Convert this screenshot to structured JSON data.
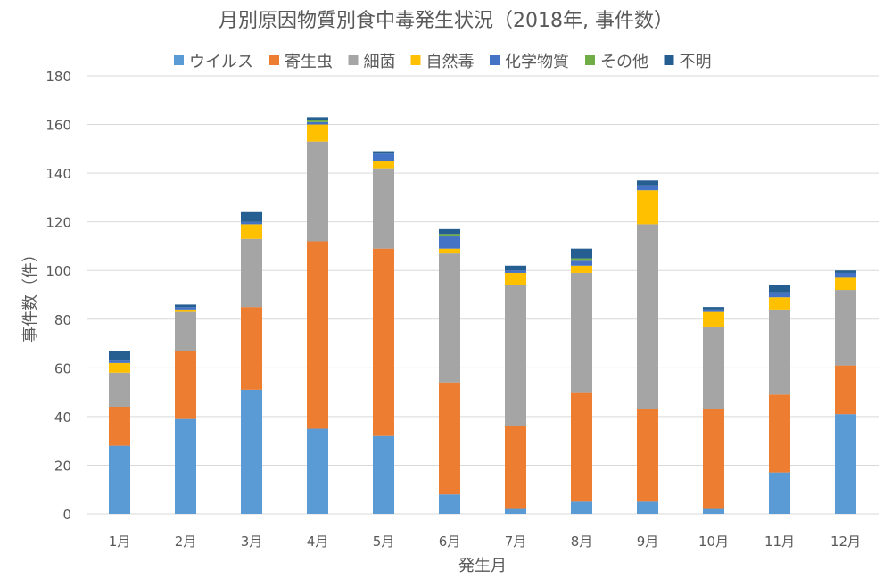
{
  "chart_data": {
    "type": "bar",
    "stacked": true,
    "title": "月別原因物質別食中毒発生状況（2018年, 事件数）",
    "xlabel": "発生月",
    "ylabel": "事件数（件）",
    "ylim": [
      0,
      180
    ],
    "yticks": [
      0,
      20,
      40,
      60,
      80,
      100,
      120,
      140,
      160,
      180
    ],
    "grid": true,
    "legend_position": "top",
    "categories": [
      "1月",
      "2月",
      "3月",
      "4月",
      "5月",
      "6月",
      "7月",
      "8月",
      "9月",
      "10月",
      "11月",
      "12月"
    ],
    "series": [
      {
        "name": "ウイルス",
        "color": "#5B9BD5",
        "values": [
          28,
          39,
          51,
          35,
          32,
          8,
          2,
          5,
          5,
          2,
          17,
          41
        ]
      },
      {
        "name": "寄生虫",
        "color": "#ED7D31",
        "values": [
          16,
          28,
          34,
          77,
          77,
          46,
          34,
          45,
          38,
          41,
          32,
          20
        ]
      },
      {
        "name": "細菌",
        "color": "#A5A5A5",
        "values": [
          14,
          16,
          28,
          41,
          33,
          53,
          58,
          49,
          76,
          34,
          35,
          31
        ]
      },
      {
        "name": "自然毒",
        "color": "#FFC000",
        "values": [
          4,
          1,
          6,
          7,
          3,
          2,
          5,
          3,
          14,
          6,
          5,
          5
        ]
      },
      {
        "name": "化学物質",
        "color": "#4472C4",
        "values": [
          1,
          1,
          1,
          1,
          3,
          5,
          1,
          2,
          2,
          1,
          2,
          2
        ]
      },
      {
        "name": "その他",
        "color": "#70AD47",
        "values": [
          0,
          0,
          0,
          1,
          0,
          1,
          0,
          1,
          0,
          0,
          0,
          0
        ]
      },
      {
        "name": "不明",
        "color": "#255E91",
        "values": [
          4,
          1,
          4,
          1,
          1,
          2,
          2,
          4,
          2,
          1,
          3,
          1
        ]
      }
    ]
  }
}
